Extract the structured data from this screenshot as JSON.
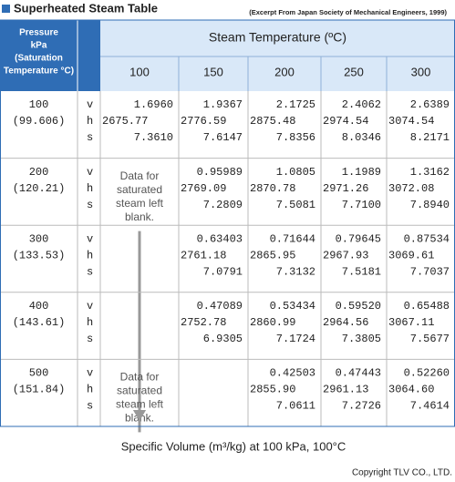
{
  "header": {
    "title": "Superheated Steam Table",
    "source": "(Excerpt From Japan Society of Mechanical Engineers, 1999)"
  },
  "table": {
    "corner_header": [
      "Pressure",
      "kPa",
      "(Saturation",
      "Temperature °C)"
    ],
    "group_header": "Steam Temperature (ºC)",
    "columns": [
      "100",
      "150",
      "200",
      "250",
      "300"
    ],
    "properties": [
      "v",
      "h",
      "s"
    ],
    "rows": [
      {
        "pressure": "100",
        "saturation": "(99.606)",
        "cells": [
          [
            "1.6960",
            "2675.77",
            "7.3610"
          ],
          [
            "1.9367",
            "2776.59",
            "7.6147"
          ],
          [
            "2.1725",
            "2875.48",
            "7.8356"
          ],
          [
            "2.4062",
            "2974.54",
            "8.0346"
          ],
          [
            "2.6389",
            "3074.54",
            "8.2171"
          ]
        ]
      },
      {
        "pressure": "200",
        "saturation": "(120.21)",
        "cells": [
          null,
          [
            "0.95989",
            "2769.09",
            "7.2809"
          ],
          [
            "1.0805",
            "2870.78",
            "7.5081"
          ],
          [
            "1.1989",
            "2971.26",
            "7.7100"
          ],
          [
            "1.3162",
            "3072.08",
            "7.8940"
          ]
        ],
        "note": [
          "Data for",
          "saturated",
          "steam left",
          "blank."
        ]
      },
      {
        "pressure": "300",
        "saturation": "(133.53)",
        "cells": [
          null,
          [
            "0.63403",
            "2761.18",
            "7.0791"
          ],
          [
            "0.71644",
            "2865.95",
            "7.3132"
          ],
          [
            "0.79645",
            "2967.93",
            "7.5181"
          ],
          [
            "0.87534",
            "3069.61",
            "7.7037"
          ]
        ]
      },
      {
        "pressure": "400",
        "saturation": "(143.61)",
        "cells": [
          null,
          [
            "0.47089",
            "2752.78",
            "6.9305"
          ],
          [
            "0.53434",
            "2860.99",
            "7.1724"
          ],
          [
            "0.59520",
            "2964.56",
            "7.3805"
          ],
          [
            "0.65488",
            "3067.11",
            "7.5677"
          ]
        ]
      },
      {
        "pressure": "500",
        "saturation": "(151.84)",
        "cells": [
          null,
          null,
          [
            "0.42503",
            "2855.90",
            "7.0611"
          ],
          [
            "0.47443",
            "2961.13",
            "7.2726"
          ],
          [
            "0.52260",
            "3064.60",
            "7.4614"
          ]
        ],
        "note": [
          "Data for",
          "saturated",
          "steam left",
          "blank."
        ]
      }
    ]
  },
  "caption": "Specific Volume (m³/kg) at 100 kPa, 100°C",
  "copyright": "Copyright TLV CO., LTD."
}
